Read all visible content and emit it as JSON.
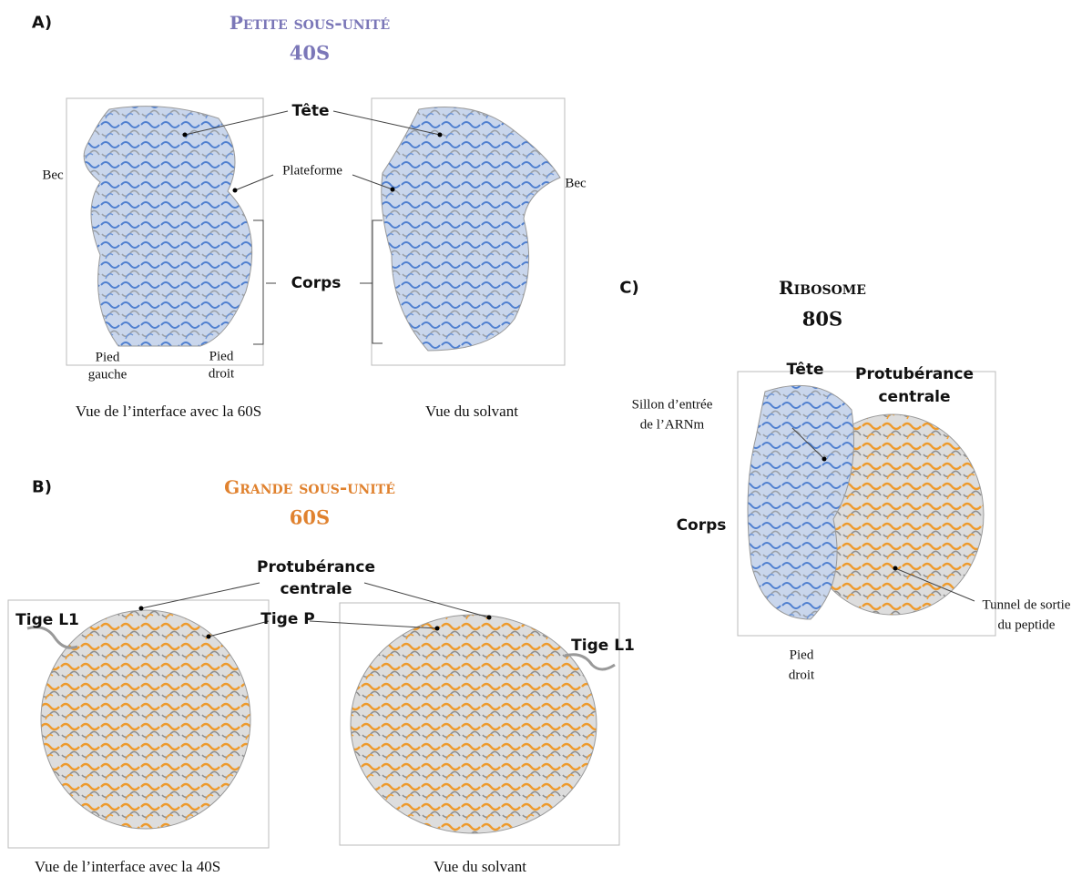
{
  "panel_a": {
    "letter": "A)",
    "title": "Petite sous-unité",
    "subtitle": "40S",
    "labels": {
      "head": "Tête",
      "beak_left": "Bec",
      "platform": "Plateforme",
      "beak_right": "Bec",
      "body": "Corps",
      "left_foot": [
        "Pied",
        "gauche"
      ],
      "right_foot": [
        "Pied",
        "droit"
      ]
    },
    "captions": [
      "Vue de l’interface avec la 60S",
      "Vue du solvant"
    ]
  },
  "panel_b": {
    "letter": "B)",
    "title": "Grande sous-unité",
    "subtitle": "60S",
    "labels": {
      "central_protuberance": [
        "Protubérance",
        "centrale"
      ],
      "l1_left": "Tige L1",
      "p_stalk": "Tige P",
      "l1_right": "Tige L1"
    },
    "captions": [
      "Vue de l’interface avec la 40S",
      "Vue du solvant"
    ]
  },
  "panel_c": {
    "letter": "C)",
    "title": "Ribosome",
    "subtitle": "80S",
    "labels": {
      "head": "Tête",
      "central_protuberance": [
        "Protubérance",
        "centrale"
      ],
      "mrna_groove": [
        "Sillon d’entrée",
        "de l’ARNm"
      ],
      "body": "Corps",
      "exit_tunnel": [
        "Tunnel de sortie",
        "du peptide"
      ],
      "right_foot": [
        "Pied",
        "droit"
      ]
    }
  }
}
